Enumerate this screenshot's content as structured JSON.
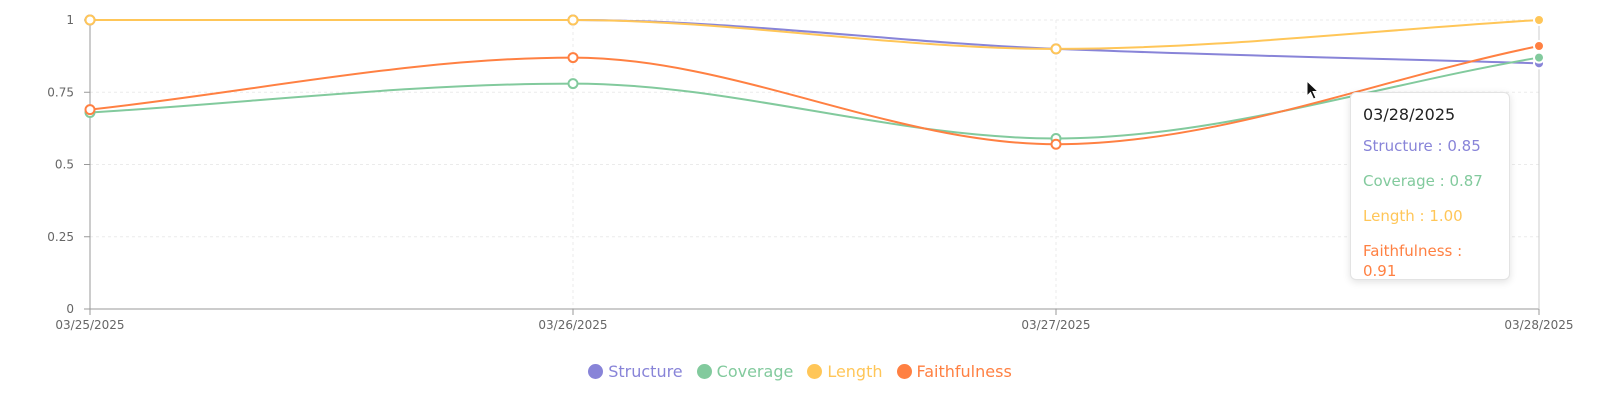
{
  "chart_data": {
    "type": "line",
    "x": [
      "03/25/2025",
      "03/26/2025",
      "03/27/2025",
      "03/28/2025"
    ],
    "ylim": [
      0,
      1
    ],
    "yticks": [
      0,
      0.25,
      0.5,
      0.75,
      1
    ],
    "ytick_labels": [
      "0",
      "0.25",
      "0.5",
      "0.75",
      "1"
    ],
    "grid": true,
    "legend_position": "bottom-center",
    "series": [
      {
        "name": "Structure",
        "color": "#8884d8",
        "values": [
          1.0,
          1.0,
          0.9,
          0.85
        ]
      },
      {
        "name": "Coverage",
        "color": "#82ca9d",
        "values": [
          0.68,
          0.78,
          0.59,
          0.87
        ]
      },
      {
        "name": "Length",
        "color": "#ffc658",
        "values": [
          1.0,
          1.0,
          0.9,
          1.0
        ]
      },
      {
        "name": "Faithfulness",
        "color": "#ff8042",
        "values": [
          0.69,
          0.87,
          0.57,
          0.91
        ]
      }
    ]
  },
  "tooltip": {
    "title": "03/28/2025",
    "rows": [
      {
        "text": "Structure : 0.85",
        "color": "#8884d8"
      },
      {
        "text": "Coverage : 0.87",
        "color": "#82ca9d"
      },
      {
        "text": "Length : 1.00",
        "color": "#ffc658"
      },
      {
        "text": "Faithfulness : 0.91",
        "color": "#ff8042"
      }
    ]
  },
  "icons": {
    "cursor": "mouse-pointer-icon"
  }
}
